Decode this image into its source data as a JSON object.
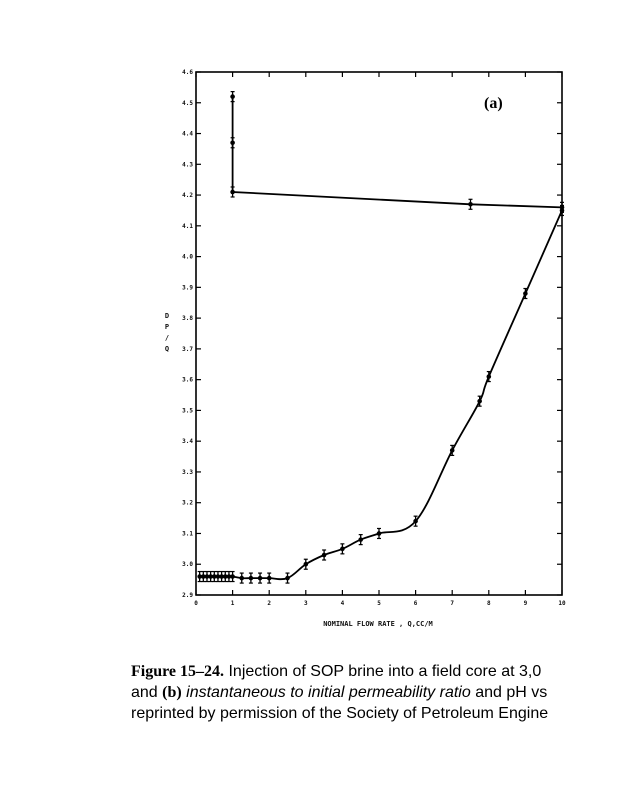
{
  "chart_data": {
    "type": "line",
    "panel_label": "(a)",
    "xlabel": "NOMINAL FLOW RATE , Q,CC/M",
    "ylabel": "DP/Q",
    "xlim": [
      0,
      10
    ],
    "ylim": [
      2.9,
      4.6
    ],
    "x_ticks": [
      0,
      1,
      2,
      3,
      4,
      5,
      6,
      7,
      8,
      9,
      10
    ],
    "y_ticks": [
      2.9,
      3.0,
      3.1,
      3.2,
      3.3,
      3.4,
      3.5,
      3.6,
      3.7,
      3.8,
      3.9,
      4.0,
      4.1,
      4.2,
      4.3,
      4.4,
      4.5,
      4.6
    ],
    "grid": false,
    "series": [
      {
        "points": [
          [
            0.1,
            2.96
          ],
          [
            0.2,
            2.96
          ],
          [
            0.3,
            2.96
          ],
          [
            0.4,
            2.96
          ],
          [
            0.5,
            2.96
          ],
          [
            0.6,
            2.96
          ],
          [
            0.7,
            2.96
          ],
          [
            0.8,
            2.96
          ],
          [
            0.9,
            2.96
          ],
          [
            1.0,
            2.96
          ],
          [
            1.25,
            2.955
          ],
          [
            1.5,
            2.955
          ],
          [
            1.75,
            2.955
          ],
          [
            2.0,
            2.955
          ],
          [
            2.5,
            2.955
          ],
          [
            3.0,
            3.0
          ],
          [
            3.5,
            3.03
          ],
          [
            4.0,
            3.05
          ],
          [
            4.5,
            3.08
          ],
          [
            5.0,
            3.1
          ],
          [
            6.0,
            3.14
          ],
          [
            7.0,
            3.37
          ],
          [
            7.75,
            3.53
          ],
          [
            8.0,
            3.61
          ],
          [
            9.0,
            3.88
          ],
          [
            10.0,
            4.15
          ]
        ]
      },
      {
        "points": [
          [
            1.0,
            4.52
          ],
          [
            1.0,
            4.37
          ],
          [
            1.0,
            4.21
          ],
          [
            7.5,
            4.17
          ],
          [
            10.0,
            4.16
          ]
        ]
      }
    ]
  },
  "caption": {
    "figure_no": "Figure 15–24.",
    "line1_rest": " Injection of SOP brine into a field core at 3,0",
    "line2_pre": "and ",
    "line2_b": "(b)",
    "line2_italic": " instantaneous to initial permeability ratio",
    "line2_post": " and pH vs",
    "line3": "reprinted by permission of the Society of Petroleum Engine"
  }
}
